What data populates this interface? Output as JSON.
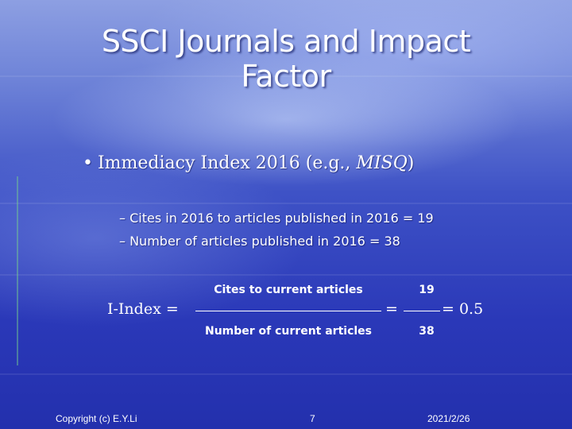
{
  "title": {
    "line1": "SSCI Journals and Impact",
    "line2": "Factor"
  },
  "bullet": {
    "marker": "•",
    "text": "Immediacy Index 2016 (e.g., ",
    "italic": "MISQ",
    "close": ")"
  },
  "subitems": [
    "– Cites in 2016 to articles published in 2016 = 19",
    "– Number of articles published in 2016 = 38"
  ],
  "equation": {
    "label": "I-Index =",
    "numerator": "Cites to current articles",
    "denominator": "Number of current articles",
    "equals": "=",
    "num_value": "19",
    "den_value": "38",
    "result": "= 0.5"
  },
  "footer": {
    "copyright": "Copyright (c) E.Y.Li",
    "page": "7",
    "date": "2021/2/26"
  }
}
